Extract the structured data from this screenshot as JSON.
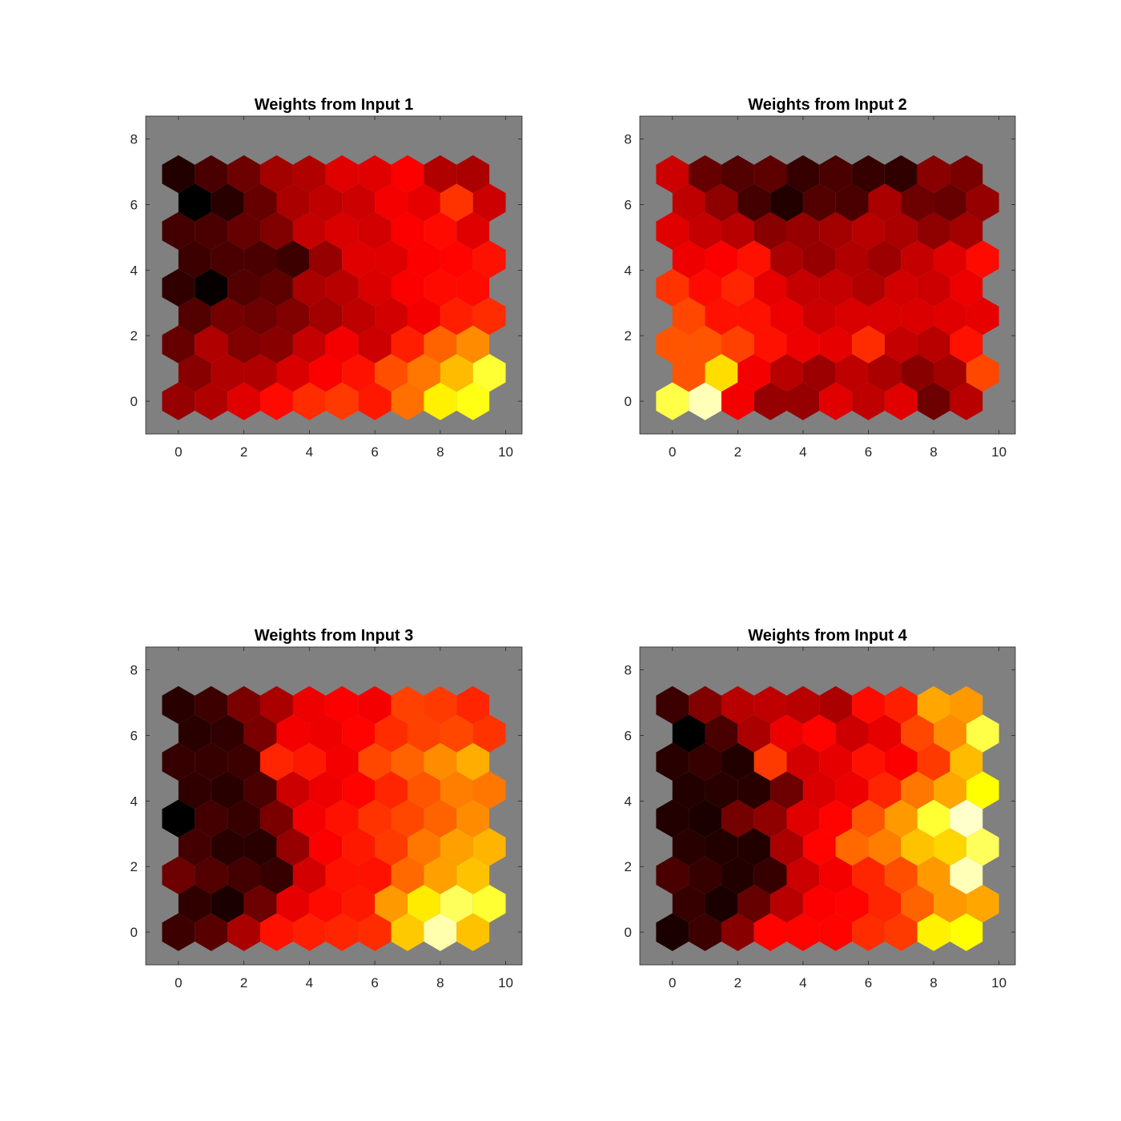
{
  "colormap": "hot",
  "axes_background": "#808080",
  "chart_data": [
    {
      "type": "heatmap",
      "title": "Weights from Input 1",
      "grid": "hexagonal",
      "rows": 9,
      "cols": 10,
      "xlim": [
        -1,
        10.5
      ],
      "ylim": [
        -1,
        8.7
      ],
      "xticks": [
        "0",
        "2",
        "4",
        "6",
        "8",
        "10"
      ],
      "yticks": [
        "0",
        "2",
        "4",
        "6",
        "8"
      ],
      "values": [
        [
          0.22,
          0.26,
          0.33,
          0.39,
          0.44,
          0.46,
          0.41,
          0.54,
          0.73,
          0.77
        ],
        [
          0.2,
          0.26,
          0.26,
          0.32,
          0.37,
          0.4,
          0.49,
          0.55,
          0.65,
          0.8
        ],
        [
          0.15,
          0.26,
          0.19,
          0.2,
          0.29,
          0.36,
          0.3,
          0.42,
          0.52,
          0.58
        ],
        [
          0.12,
          0.17,
          0.16,
          0.19,
          0.24,
          0.28,
          0.31,
          0.36,
          0.42,
          0.44
        ],
        [
          0.07,
          0.01,
          0.12,
          0.14,
          0.25,
          0.27,
          0.32,
          0.37,
          0.39,
          0.39
        ],
        [
          0.09,
          0.11,
          0.11,
          0.09,
          0.22,
          0.33,
          0.33,
          0.37,
          0.38,
          0.4
        ],
        [
          0.1,
          0.11,
          0.15,
          0.19,
          0.29,
          0.32,
          0.31,
          0.37,
          0.39,
          0.33
        ],
        [
          0.0,
          0.06,
          0.15,
          0.25,
          0.28,
          0.3,
          0.36,
          0.34,
          0.45,
          0.3
        ],
        [
          0.05,
          0.11,
          0.16,
          0.24,
          0.26,
          0.33,
          0.33,
          0.37,
          0.26,
          0.25
        ]
      ]
    },
    {
      "type": "heatmap",
      "title": "Weights from Input 2",
      "grid": "hexagonal",
      "rows": 9,
      "cols": 10,
      "xlim": [
        -1,
        10.5
      ],
      "ylim": [
        -1,
        8.7
      ],
      "xticks": [
        "0",
        "2",
        "4",
        "6",
        "8",
        "10"
      ],
      "yticks": [
        "0",
        "2",
        "4",
        "6",
        "8"
      ],
      "values": [
        [
          0.82,
          0.93,
          0.36,
          0.22,
          0.22,
          0.33,
          0.28,
          0.33,
          0.16,
          0.27
        ],
        [
          0.5,
          0.7,
          0.36,
          0.27,
          0.23,
          0.28,
          0.25,
          0.2,
          0.24,
          0.48
        ],
        [
          0.5,
          0.5,
          0.47,
          0.4,
          0.35,
          0.34,
          0.44,
          0.29,
          0.27,
          0.4
        ],
        [
          0.48,
          0.4,
          0.4,
          0.35,
          0.3,
          0.32,
          0.32,
          0.32,
          0.33,
          0.34
        ],
        [
          0.45,
          0.39,
          0.43,
          0.34,
          0.29,
          0.29,
          0.26,
          0.31,
          0.3,
          0.35
        ],
        [
          0.35,
          0.37,
          0.4,
          0.25,
          0.22,
          0.26,
          0.23,
          0.29,
          0.33,
          0.39
        ],
        [
          0.33,
          0.29,
          0.27,
          0.2,
          0.22,
          0.24,
          0.27,
          0.25,
          0.21,
          0.24
        ],
        [
          0.28,
          0.21,
          0.1,
          0.05,
          0.12,
          0.11,
          0.25,
          0.16,
          0.15,
          0.22
        ],
        [
          0.3,
          0.15,
          0.12,
          0.14,
          0.08,
          0.11,
          0.08,
          0.07,
          0.2,
          0.18
        ]
      ]
    },
    {
      "type": "heatmap",
      "title": "Weights from Input 3",
      "grid": "hexagonal",
      "rows": 9,
      "cols": 10,
      "xlim": [
        -1,
        10.5
      ],
      "ylim": [
        -1,
        8.7
      ],
      "xticks": [
        "0",
        "2",
        "4",
        "6",
        "8",
        "10"
      ],
      "yticks": [
        "0",
        "2",
        "4",
        "6",
        "8"
      ],
      "values": [
        [
          0.09,
          0.13,
          0.25,
          0.4,
          0.42,
          0.43,
          0.44,
          0.67,
          0.92,
          0.66
        ],
        [
          0.07,
          0.04,
          0.16,
          0.34,
          0.39,
          0.41,
          0.6,
          0.72,
          0.84,
          0.8
        ],
        [
          0.16,
          0.12,
          0.1,
          0.08,
          0.31,
          0.4,
          0.4,
          0.53,
          0.61,
          0.66
        ],
        [
          0.1,
          0.06,
          0.06,
          0.22,
          0.37,
          0.41,
          0.46,
          0.55,
          0.61,
          0.64
        ],
        [
          0.0,
          0.1,
          0.08,
          0.18,
          0.36,
          0.4,
          0.45,
          0.48,
          0.52,
          0.58
        ],
        [
          0.07,
          0.06,
          0.11,
          0.3,
          0.35,
          0.38,
          0.43,
          0.5,
          0.56,
          0.55
        ],
        [
          0.08,
          0.08,
          0.09,
          0.43,
          0.41,
          0.36,
          0.48,
          0.52,
          0.58,
          0.63
        ],
        [
          0.06,
          0.07,
          0.18,
          0.36,
          0.35,
          0.38,
          0.44,
          0.47,
          0.48,
          0.45
        ],
        [
          0.06,
          0.09,
          0.18,
          0.25,
          0.35,
          0.37,
          0.36,
          0.47,
          0.46,
          0.43
        ]
      ]
    },
    {
      "type": "heatmap",
      "title": "Weights from Input 4",
      "grid": "hexagonal",
      "rows": 9,
      "cols": 10,
      "xlim": [
        -1,
        10.5
      ],
      "ylim": [
        -1,
        8.7
      ],
      "xticks": [
        "0",
        "2",
        "4",
        "6",
        "8",
        "10"
      ],
      "yticks": [
        "0",
        "2",
        "4",
        "6",
        "8"
      ],
      "values": [
        [
          0.04,
          0.09,
          0.2,
          0.38,
          0.38,
          0.38,
          0.44,
          0.46,
          0.73,
          0.75
        ],
        [
          0.08,
          0.04,
          0.15,
          0.27,
          0.37,
          0.38,
          0.43,
          0.52,
          0.6,
          0.62
        ],
        [
          0.11,
          0.08,
          0.05,
          0.08,
          0.3,
          0.36,
          0.43,
          0.49,
          0.6,
          0.93
        ],
        [
          0.06,
          0.05,
          0.05,
          0.25,
          0.38,
          0.53,
          0.56,
          0.66,
          0.69,
          0.84
        ],
        [
          0.05,
          0.04,
          0.17,
          0.21,
          0.33,
          0.38,
          0.5,
          0.6,
          0.8,
          0.95
        ],
        [
          0.05,
          0.06,
          0.06,
          0.16,
          0.32,
          0.35,
          0.43,
          0.55,
          0.62,
          0.75
        ],
        [
          0.06,
          0.08,
          0.05,
          0.46,
          0.31,
          0.34,
          0.4,
          0.37,
          0.46,
          0.65
        ],
        [
          0.0,
          0.11,
          0.25,
          0.35,
          0.38,
          0.3,
          0.34,
          0.48,
          0.58,
          0.82
        ],
        [
          0.09,
          0.19,
          0.27,
          0.28,
          0.27,
          0.25,
          0.39,
          0.42,
          0.62,
          0.6
        ]
      ]
    }
  ]
}
